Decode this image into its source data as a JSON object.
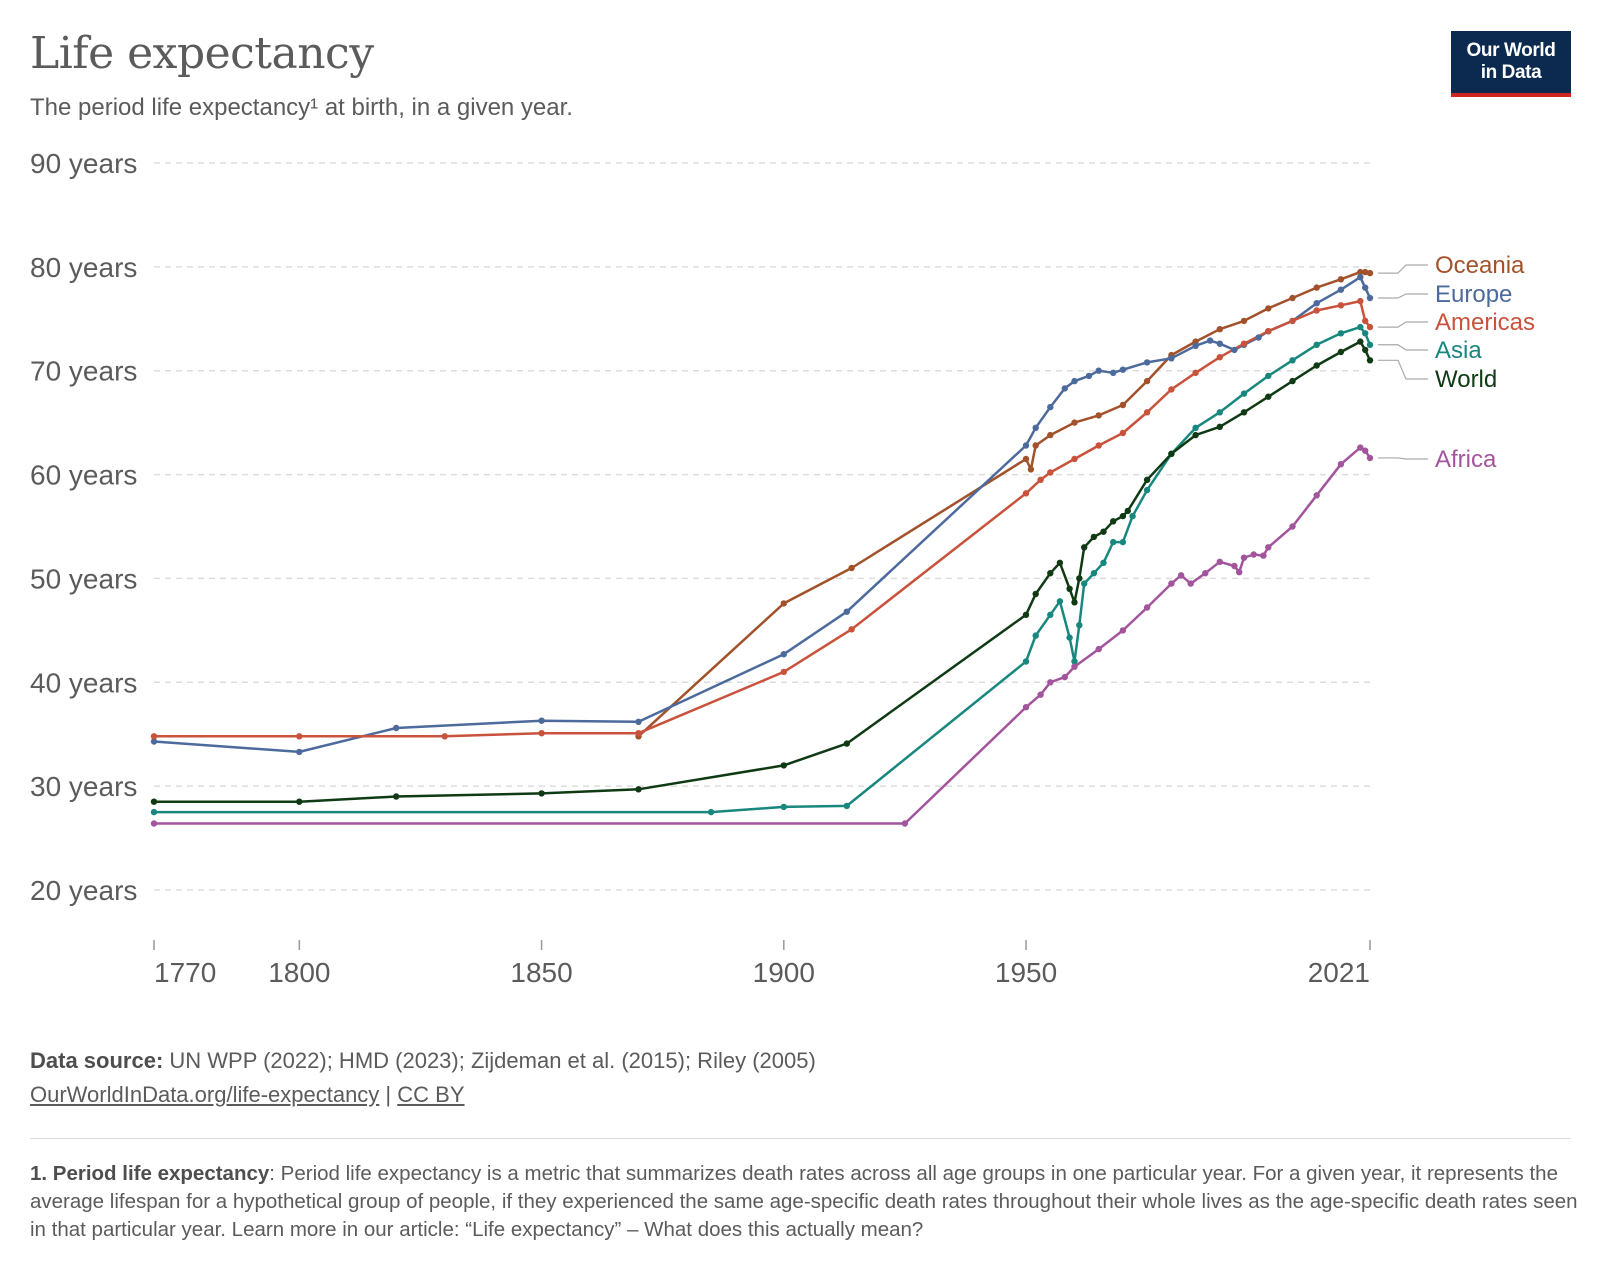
{
  "header": {
    "title": "Life expectancy",
    "subtitle": "The period life expectancy¹ at birth, in a given year."
  },
  "logo": {
    "line1": "Our World",
    "line2": "in Data"
  },
  "source": {
    "label": "Data source:",
    "text": " UN WPP (2022); HMD (2023); Zijdeman et al. (2015); Riley (2005)",
    "url_text": "OurWorldInData.org/life-expectancy",
    "separator": " | ",
    "license": "CC BY"
  },
  "footnote": {
    "label": "1. Period life expectancy",
    "text": ": Period life expectancy is a metric that summarizes death rates across all age groups in one particular year. For a given year, it represents the average lifespan for a hypothetical group of people, if they experienced the same age-specific death rates throughout their whole lives as the age-specific death rates seen in that particular year. Learn more in our article: “Life expectancy” – What does this actually mean?"
  },
  "chart_data": {
    "type": "line",
    "title": "Life expectancy",
    "subtitle": "The period life expectancy¹ at birth, in a given year.",
    "xlabel": "",
    "ylabel": "",
    "xlim": [
      1770,
      2021
    ],
    "ylim": [
      20,
      90
    ],
    "x_ticks": [
      1770,
      1800,
      1850,
      1900,
      1950,
      2021
    ],
    "x_tick_labels": [
      "1770",
      "1800",
      "1850",
      "1900",
      "1950",
      "2021"
    ],
    "y_ticks": [
      20,
      30,
      40,
      50,
      60,
      70,
      80,
      90
    ],
    "y_tick_labels": [
      "20 years",
      "30 years",
      "40 years",
      "50 years",
      "60 years",
      "70 years",
      "80 years",
      "90 years"
    ],
    "grid": "horizontal dashed",
    "legend": "labels at right end of lines",
    "series": [
      {
        "name": "Oceania",
        "color": "#a2522a",
        "points": [
          [
            1870,
            34.8
          ],
          [
            1900,
            47.6
          ],
          [
            1914,
            51
          ],
          [
            1950,
            61.5
          ],
          [
            1951,
            60.5
          ],
          [
            1952,
            62.8
          ],
          [
            1955,
            63.8
          ],
          [
            1960,
            65
          ],
          [
            1965,
            65.7
          ],
          [
            1970,
            66.7
          ],
          [
            1975,
            69
          ],
          [
            1980,
            71.5
          ],
          [
            1985,
            72.8
          ],
          [
            1990,
            74
          ],
          [
            1995,
            74.8
          ],
          [
            2000,
            76
          ],
          [
            2005,
            77
          ],
          [
            2010,
            78
          ],
          [
            2015,
            78.8
          ],
          [
            2019,
            79.5
          ],
          [
            2020,
            79.5
          ],
          [
            2021,
            79.4
          ]
        ]
      },
      {
        "name": "Europe",
        "color": "#4c6a9c",
        "points": [
          [
            1770,
            34.3
          ],
          [
            1800,
            33.3
          ],
          [
            1820,
            35.6
          ],
          [
            1850,
            36.3
          ],
          [
            1870,
            36.2
          ],
          [
            1900,
            42.7
          ],
          [
            1913,
            46.8
          ],
          [
            1950,
            62.8
          ],
          [
            1952,
            64.5
          ],
          [
            1955,
            66.5
          ],
          [
            1958,
            68.3
          ],
          [
            1960,
            69
          ],
          [
            1963,
            69.5
          ],
          [
            1965,
            70
          ],
          [
            1968,
            69.8
          ],
          [
            1970,
            70.1
          ],
          [
            1975,
            70.8
          ],
          [
            1980,
            71.2
          ],
          [
            1985,
            72.4
          ],
          [
            1988,
            72.9
          ],
          [
            1990,
            72.6
          ],
          [
            1993,
            72
          ],
          [
            1995,
            72.5
          ],
          [
            1998,
            73.2
          ],
          [
            2000,
            73.8
          ],
          [
            2005,
            74.8
          ],
          [
            2010,
            76.5
          ],
          [
            2015,
            77.8
          ],
          [
            2019,
            79
          ],
          [
            2020,
            78
          ],
          [
            2021,
            77
          ]
        ]
      },
      {
        "name": "Americas",
        "color": "#c9523c",
        "points": [
          [
            1770,
            34.8
          ],
          [
            1800,
            34.8
          ],
          [
            1830,
            34.8
          ],
          [
            1850,
            35.1
          ],
          [
            1870,
            35.1
          ],
          [
            1900,
            41
          ],
          [
            1914,
            45.1
          ],
          [
            1950,
            58.2
          ],
          [
            1953,
            59.5
          ],
          [
            1955,
            60.2
          ],
          [
            1960,
            61.5
          ],
          [
            1965,
            62.8
          ],
          [
            1970,
            64
          ],
          [
            1975,
            66
          ],
          [
            1980,
            68.2
          ],
          [
            1985,
            69.8
          ],
          [
            1990,
            71.3
          ],
          [
            1995,
            72.6
          ],
          [
            2000,
            73.8
          ],
          [
            2005,
            74.8
          ],
          [
            2010,
            75.8
          ],
          [
            2015,
            76.3
          ],
          [
            2019,
            76.7
          ],
          [
            2020,
            74.8
          ],
          [
            2021,
            74.2
          ]
        ]
      },
      {
        "name": "Asia",
        "color": "#18877e",
        "points": [
          [
            1770,
            27.5
          ],
          [
            1885,
            27.5
          ],
          [
            1900,
            28
          ],
          [
            1913,
            28.1
          ],
          [
            1950,
            42
          ],
          [
            1952,
            44.5
          ],
          [
            1955,
            46.5
          ],
          [
            1957,
            47.8
          ],
          [
            1959,
            44.3
          ],
          [
            1960,
            42
          ],
          [
            1961,
            45.5
          ],
          [
            1962,
            49.5
          ],
          [
            1964,
            50.5
          ],
          [
            1966,
            51.5
          ],
          [
            1968,
            53.5
          ],
          [
            1970,
            53.5
          ],
          [
            1972,
            56
          ],
          [
            1975,
            58.5
          ],
          [
            1980,
            62
          ],
          [
            1985,
            64.5
          ],
          [
            1990,
            66
          ],
          [
            1995,
            67.8
          ],
          [
            2000,
            69.5
          ],
          [
            2005,
            71
          ],
          [
            2010,
            72.5
          ],
          [
            2015,
            73.6
          ],
          [
            2019,
            74.2
          ],
          [
            2020,
            73.6
          ],
          [
            2021,
            72.5
          ]
        ]
      },
      {
        "name": "World",
        "color": "#0f3a14",
        "points": [
          [
            1770,
            28.5
          ],
          [
            1800,
            28.5
          ],
          [
            1820,
            29
          ],
          [
            1850,
            29.3
          ],
          [
            1870,
            29.7
          ],
          [
            1900,
            32
          ],
          [
            1913,
            34.1
          ],
          [
            1950,
            46.5
          ],
          [
            1952,
            48.5
          ],
          [
            1955,
            50.5
          ],
          [
            1957,
            51.5
          ],
          [
            1959,
            49
          ],
          [
            1960,
            47.7
          ],
          [
            1961,
            50
          ],
          [
            1962,
            53
          ],
          [
            1964,
            54
          ],
          [
            1966,
            54.5
          ],
          [
            1968,
            55.5
          ],
          [
            1970,
            56
          ],
          [
            1971,
            56.5
          ],
          [
            1975,
            59.5
          ],
          [
            1980,
            62
          ],
          [
            1985,
            63.8
          ],
          [
            1990,
            64.6
          ],
          [
            1995,
            66
          ],
          [
            2000,
            67.5
          ],
          [
            2005,
            69
          ],
          [
            2010,
            70.5
          ],
          [
            2015,
            71.8
          ],
          [
            2019,
            72.8
          ],
          [
            2020,
            72
          ],
          [
            2021,
            71
          ]
        ]
      },
      {
        "name": "Africa",
        "color": "#a2559c",
        "points": [
          [
            1770,
            26.4
          ],
          [
            1925,
            26.4
          ],
          [
            1950,
            37.6
          ],
          [
            1953,
            38.8
          ],
          [
            1955,
            40
          ],
          [
            1958,
            40.5
          ],
          [
            1960,
            41.5
          ],
          [
            1965,
            43.2
          ],
          [
            1970,
            45
          ],
          [
            1975,
            47.2
          ],
          [
            1980,
            49.5
          ],
          [
            1982,
            50.3
          ],
          [
            1984,
            49.5
          ],
          [
            1987,
            50.5
          ],
          [
            1990,
            51.6
          ],
          [
            1993,
            51.2
          ],
          [
            1994,
            50.6
          ],
          [
            1995,
            52
          ],
          [
            1997,
            52.3
          ],
          [
            1999,
            52.2
          ],
          [
            2000,
            53
          ],
          [
            2005,
            55
          ],
          [
            2010,
            58
          ],
          [
            2015,
            61
          ],
          [
            2019,
            62.6
          ],
          [
            2020,
            62.3
          ],
          [
            2021,
            61.6
          ]
        ]
      }
    ]
  }
}
